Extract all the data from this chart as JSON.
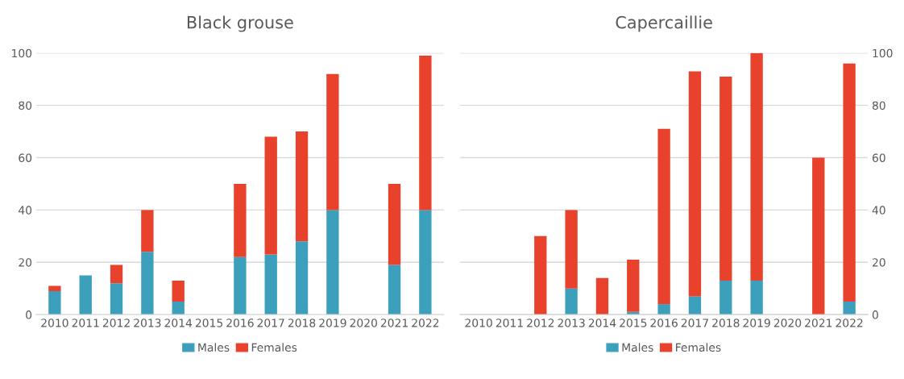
{
  "chart_data": [
    {
      "type": "bar",
      "title": "Black grouse",
      "stacked": true,
      "grid": "y",
      "legend": "bottom",
      "categories": [
        "2010",
        "2011",
        "2012",
        "2013",
        "2014",
        "2015",
        "2016",
        "2017",
        "2018",
        "2019",
        "2020",
        "2021",
        "2022"
      ],
      "series": [
        {
          "name": "Males",
          "color": "#3c9fbb",
          "values": [
            9,
            15,
            12,
            24,
            5,
            null,
            22,
            23,
            28,
            40,
            null,
            19,
            40
          ]
        },
        {
          "name": "Females",
          "color": "#e8412c",
          "values": [
            2,
            null,
            7,
            16,
            8,
            null,
            28,
            45,
            42,
            52,
            null,
            31,
            59
          ]
        }
      ],
      "ylim": [
        0,
        100
      ],
      "yticks": [
        0,
        20,
        40,
        60,
        80,
        100
      ]
    },
    {
      "type": "bar",
      "title": "Capercaillie",
      "stacked": true,
      "grid": "y",
      "legend": "bottom",
      "categories": [
        "2010",
        "2011",
        "2012",
        "2013",
        "2014",
        "2015",
        "2016",
        "2017",
        "2018",
        "2019",
        "2020",
        "2021",
        "2022"
      ],
      "series": [
        {
          "name": "Males",
          "color": "#3c9fbb",
          "axis": "y2",
          "values": [
            null,
            null,
            null,
            10,
            null,
            1,
            4,
            7,
            13,
            13,
            null,
            null,
            5
          ]
        },
        {
          "name": "Females",
          "color": "#e8412c",
          "axis": "y2",
          "values": [
            null,
            null,
            30,
            30,
            14,
            20,
            67,
            86,
            78,
            87,
            null,
            60,
            91
          ]
        }
      ],
      "y2lim": [
        0,
        100
      ],
      "y2ticks": [
        0,
        20,
        40,
        60,
        80,
        100
      ]
    }
  ]
}
